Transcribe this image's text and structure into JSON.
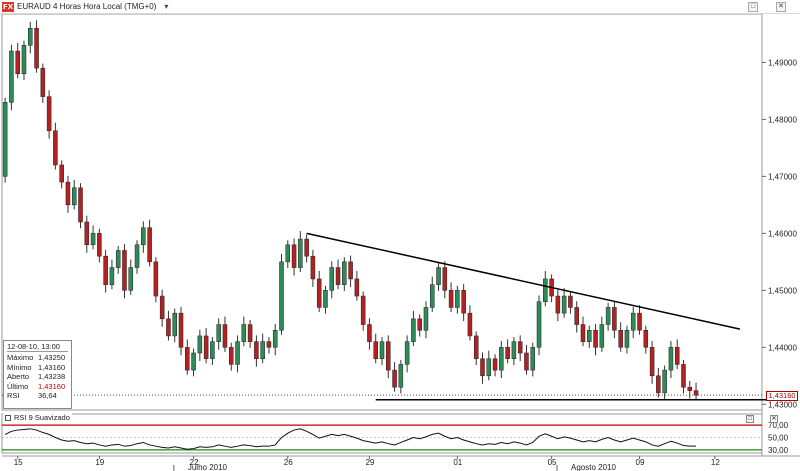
{
  "window": {
    "logo": "FX",
    "title": "EURAUD 4 Horas Hora Local (TMG+0)",
    "dropdown": "▾",
    "max_button": "□",
    "close_button": "✕"
  },
  "databox": {
    "date": "12-08-10, 13:00",
    "rows": [
      {
        "label": "Máximo",
        "value": "1,43250"
      },
      {
        "label": "Mínimo",
        "value": "1,43160"
      },
      {
        "label": "Aberto",
        "value": "1,43238"
      },
      {
        "label": "Último",
        "value": "1,43160"
      },
      {
        "label": "RSI",
        "value": "36,64"
      }
    ]
  },
  "last_price_label": "1,43160",
  "rsi_panel": {
    "title": "RSI 9 Suavizado",
    "level_labels": [
      "70,00",
      "50,00",
      "30,00"
    ],
    "levels": [
      70,
      50,
      30
    ],
    "button_max": "□",
    "button_close": "✕"
  },
  "colors": {
    "bull": "#2e8b57",
    "bear": "#b22222",
    "trendline": "#000000",
    "rsi_upper": "#c00000",
    "rsi_lower": "#1a8a1a",
    "last_price": "#b00000"
  },
  "chart_data": [
    {
      "type": "candlestick",
      "title": "EURAUD 4 Horas Hora Local (TMG+0)",
      "ylim": [
        1.429,
        1.4985
      ],
      "y_tick_labels": [
        "1,49000",
        "1,48000",
        "1,47000",
        "1,46000",
        "1,45000",
        "1,44000",
        "1,43000"
      ],
      "y_ticks": [
        1.49,
        1.48,
        1.47,
        1.46,
        1.45,
        1.44,
        1.43
      ],
      "x_tick_labels": [
        "15",
        "19",
        "22",
        "26",
        "29",
        "01",
        "05",
        "09",
        "12"
      ],
      "x_tick_index": [
        2,
        15,
        30,
        45,
        58,
        72,
        87,
        101,
        113
      ],
      "x_month_labels": [
        "Julho 2010",
        "Agosto 2010"
      ],
      "x_month_index": [
        31,
        92
      ],
      "last_price": 1.4316,
      "candles": [
        [
          1.47,
          1.483
        ],
        [
          1.483,
          1.492
        ],
        [
          1.492,
          1.488
        ],
        [
          1.488,
          1.493
        ],
        [
          1.493,
          1.496
        ],
        [
          1.496,
          1.489
        ],
        [
          1.489,
          1.484
        ],
        [
          1.484,
          1.478
        ],
        [
          1.478,
          1.472
        ],
        [
          1.472,
          1.469
        ],
        [
          1.469,
          1.465
        ],
        [
          1.465,
          1.468
        ],
        [
          1.468,
          1.462
        ],
        [
          1.462,
          1.458
        ],
        [
          1.458,
          1.46
        ],
        [
          1.46,
          1.456
        ],
        [
          1.456,
          1.451
        ],
        [
          1.451,
          1.454
        ],
        [
          1.454,
          1.457
        ],
        [
          1.457,
          1.45
        ],
        [
          1.45,
          1.454
        ],
        [
          1.454,
          1.458
        ],
        [
          1.458,
          1.461
        ],
        [
          1.461,
          1.455
        ],
        [
          1.455,
          1.449
        ],
        [
          1.449,
          1.445
        ],
        [
          1.445,
          1.442
        ],
        [
          1.442,
          1.446
        ],
        [
          1.446,
          1.44
        ],
        [
          1.44,
          1.436
        ],
        [
          1.436,
          1.439
        ],
        [
          1.439,
          1.442
        ],
        [
          1.442,
          1.438
        ],
        [
          1.438,
          1.441
        ],
        [
          1.441,
          1.444
        ],
        [
          1.444,
          1.44
        ],
        [
          1.44,
          1.437
        ],
        [
          1.437,
          1.441
        ],
        [
          1.441,
          1.444
        ],
        [
          1.444,
          1.441
        ],
        [
          1.441,
          1.438
        ],
        [
          1.438,
          1.441
        ],
        [
          1.441,
          1.44
        ],
        [
          1.44,
          1.443
        ],
        [
          1.443,
          1.455
        ],
        [
          1.455,
          1.458
        ],
        [
          1.458,
          1.454
        ],
        [
          1.454,
          1.459
        ],
        [
          1.459,
          1.456
        ],
        [
          1.456,
          1.452
        ],
        [
          1.452,
          1.447
        ],
        [
          1.447,
          1.45
        ],
        [
          1.45,
          1.454
        ],
        [
          1.454,
          1.451
        ],
        [
          1.451,
          1.455
        ],
        [
          1.455,
          1.452
        ],
        [
          1.452,
          1.449
        ],
        [
          1.449,
          1.444
        ],
        [
          1.444,
          1.441
        ],
        [
          1.441,
          1.438
        ],
        [
          1.438,
          1.441
        ],
        [
          1.441,
          1.436
        ],
        [
          1.436,
          1.433
        ],
        [
          1.433,
          1.437
        ],
        [
          1.437,
          1.441
        ],
        [
          1.441,
          1.445
        ],
        [
          1.445,
          1.443
        ],
        [
          1.443,
          1.447
        ],
        [
          1.447,
          1.451
        ],
        [
          1.451,
          1.454
        ],
        [
          1.454,
          1.45
        ],
        [
          1.45,
          1.447
        ],
        [
          1.447,
          1.45
        ],
        [
          1.45,
          1.446
        ],
        [
          1.446,
          1.442
        ],
        [
          1.442,
          1.438
        ],
        [
          1.438,
          1.435
        ],
        [
          1.435,
          1.438
        ],
        [
          1.438,
          1.436
        ],
        [
          1.436,
          1.44
        ],
        [
          1.44,
          1.438
        ],
        [
          1.438,
          1.441
        ],
        [
          1.441,
          1.439
        ],
        [
          1.439,
          1.436
        ],
        [
          1.436,
          1.44
        ],
        [
          1.44,
          1.448
        ],
        [
          1.448,
          1.452
        ],
        [
          1.452,
          1.449
        ],
        [
          1.449,
          1.446
        ],
        [
          1.446,
          1.449
        ],
        [
          1.449,
          1.447
        ],
        [
          1.447,
          1.444
        ],
        [
          1.444,
          1.441
        ],
        [
          1.441,
          1.443
        ],
        [
          1.443,
          1.44
        ],
        [
          1.44,
          1.444
        ],
        [
          1.444,
          1.447
        ],
        [
          1.447,
          1.443
        ],
        [
          1.443,
          1.44
        ],
        [
          1.44,
          1.443
        ],
        [
          1.443,
          1.446
        ],
        [
          1.446,
          1.443
        ],
        [
          1.443,
          1.44
        ],
        [
          1.44,
          1.435
        ],
        [
          1.435,
          1.432
        ],
        [
          1.432,
          1.436
        ],
        [
          1.436,
          1.44
        ],
        [
          1.44,
          1.437
        ],
        [
          1.437,
          1.433
        ],
        [
          1.433,
          1.4324
        ],
        [
          1.4324,
          1.4316
        ]
      ],
      "trendlines": [
        {
          "x": [
            48,
            117
          ],
          "y": [
            1.46,
            1.4432
          ]
        },
        {
          "x": [
            59,
            123
          ],
          "y": [
            1.4308,
            1.4308
          ]
        }
      ]
    },
    {
      "type": "line",
      "title": "RSI 9 Suavizado",
      "ylim": [
        25,
        75
      ],
      "levels": [
        70,
        50,
        30
      ],
      "values": [
        55,
        60,
        62,
        63,
        64,
        62,
        58,
        55,
        50,
        46,
        44,
        45,
        42,
        40,
        41,
        38,
        36,
        38,
        39,
        36,
        37,
        40,
        42,
        38,
        36,
        34,
        33,
        35,
        33,
        31,
        32,
        35,
        34,
        35,
        38,
        36,
        34,
        36,
        38,
        37,
        35,
        36,
        36,
        38,
        50,
        57,
        62,
        64,
        60,
        55,
        49,
        52,
        55,
        53,
        55,
        52,
        49,
        45,
        43,
        41,
        43,
        40,
        38,
        42,
        46,
        50,
        48,
        51,
        55,
        57,
        52,
        48,
        50,
        46,
        43,
        40,
        38,
        40,
        39,
        42,
        40,
        43,
        41,
        38,
        42,
        52,
        56,
        52,
        48,
        51,
        49,
        46,
        43,
        45,
        43,
        47,
        50,
        46,
        43,
        46,
        49,
        46,
        43,
        38,
        36,
        40,
        44,
        41,
        37,
        36,
        36
      ]
    }
  ]
}
